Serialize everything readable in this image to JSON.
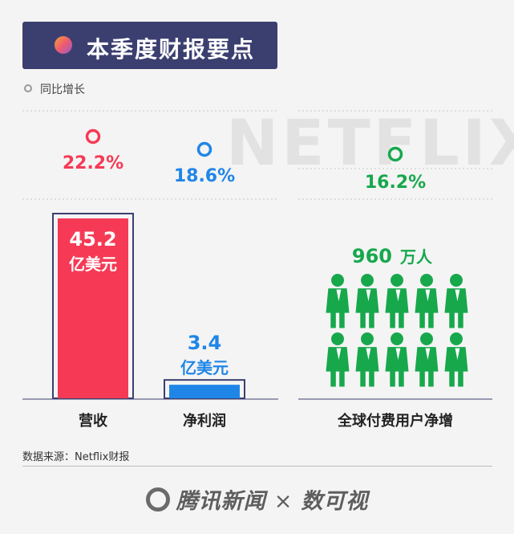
{
  "header": {
    "title": "本季度财报要点"
  },
  "legend": {
    "label": "同比增长",
    "icon": "ring-icon"
  },
  "chart_data": {
    "type": "bar",
    "title": "本季度财报要点",
    "categories": [
      "营收",
      "净利润"
    ],
    "values": [
      45.2,
      3.4
    ],
    "value_labels": [
      "45.2",
      "3.4"
    ],
    "unit": "亿美元",
    "growth_labels": [
      "22.2%",
      "18.6%"
    ],
    "subscribers": {
      "category": "全球付费用户净增",
      "value": 960,
      "value_label": "960",
      "unit": "万人",
      "growth_label": "16.2%",
      "icon": "person-icon"
    },
    "ylim": [
      0,
      45.2
    ],
    "grid": true
  },
  "colors": {
    "revenue": "#f63a55",
    "net_profit": "#1f86e8",
    "subscribers": "#17a84c",
    "frame": "#3b3f70"
  },
  "watermark": {
    "text": "NETFLIX"
  },
  "source": {
    "text": "数据来源：Netflix财报"
  },
  "footer": {
    "brand": "腾讯新闻",
    "separator": "×",
    "partner": "数可视"
  }
}
